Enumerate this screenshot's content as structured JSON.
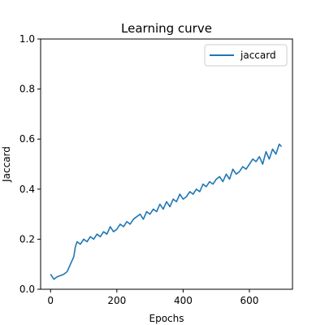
{
  "chart_data": {
    "type": "line",
    "title": "Learning curve",
    "xlabel": "Epochs",
    "ylabel": "Jaccard",
    "xlim": [
      -30,
      730
    ],
    "ylim": [
      0.0,
      1.0
    ],
    "xticks": [
      0,
      200,
      400,
      600
    ],
    "yticks": [
      0.0,
      0.2,
      0.4,
      0.6,
      0.8,
      1.0
    ],
    "xtick_labels": [
      "0",
      "200",
      "400",
      "600"
    ],
    "ytick_labels": [
      "0.0",
      "0.2",
      "0.4",
      "0.6",
      "0.8",
      "1.0"
    ],
    "grid": false,
    "legend_position": "top-right",
    "series": [
      {
        "name": "jaccard",
        "color": "#1f77b4",
        "x": [
          0,
          10,
          20,
          30,
          40,
          50,
          60,
          70,
          75,
          80,
          90,
          100,
          110,
          120,
          130,
          140,
          150,
          160,
          170,
          180,
          190,
          200,
          210,
          220,
          230,
          240,
          250,
          260,
          270,
          280,
          290,
          300,
          310,
          320,
          330,
          340,
          350,
          360,
          370,
          380,
          390,
          400,
          410,
          420,
          430,
          440,
          450,
          460,
          470,
          480,
          490,
          500,
          510,
          520,
          530,
          540,
          550,
          560,
          570,
          580,
          590,
          600,
          610,
          620,
          630,
          640,
          650,
          660,
          670,
          680,
          690,
          697
        ],
        "y": [
          0.06,
          0.04,
          0.05,
          0.055,
          0.06,
          0.07,
          0.1,
          0.13,
          0.17,
          0.19,
          0.18,
          0.2,
          0.19,
          0.21,
          0.2,
          0.22,
          0.21,
          0.23,
          0.22,
          0.25,
          0.23,
          0.24,
          0.26,
          0.25,
          0.27,
          0.26,
          0.28,
          0.29,
          0.3,
          0.28,
          0.31,
          0.3,
          0.32,
          0.31,
          0.34,
          0.32,
          0.35,
          0.33,
          0.36,
          0.35,
          0.38,
          0.36,
          0.37,
          0.39,
          0.38,
          0.4,
          0.39,
          0.42,
          0.41,
          0.43,
          0.42,
          0.44,
          0.45,
          0.43,
          0.46,
          0.44,
          0.48,
          0.46,
          0.47,
          0.49,
          0.48,
          0.5,
          0.52,
          0.51,
          0.53,
          0.5,
          0.55,
          0.52,
          0.56,
          0.54,
          0.58,
          0.57
        ]
      }
    ]
  }
}
